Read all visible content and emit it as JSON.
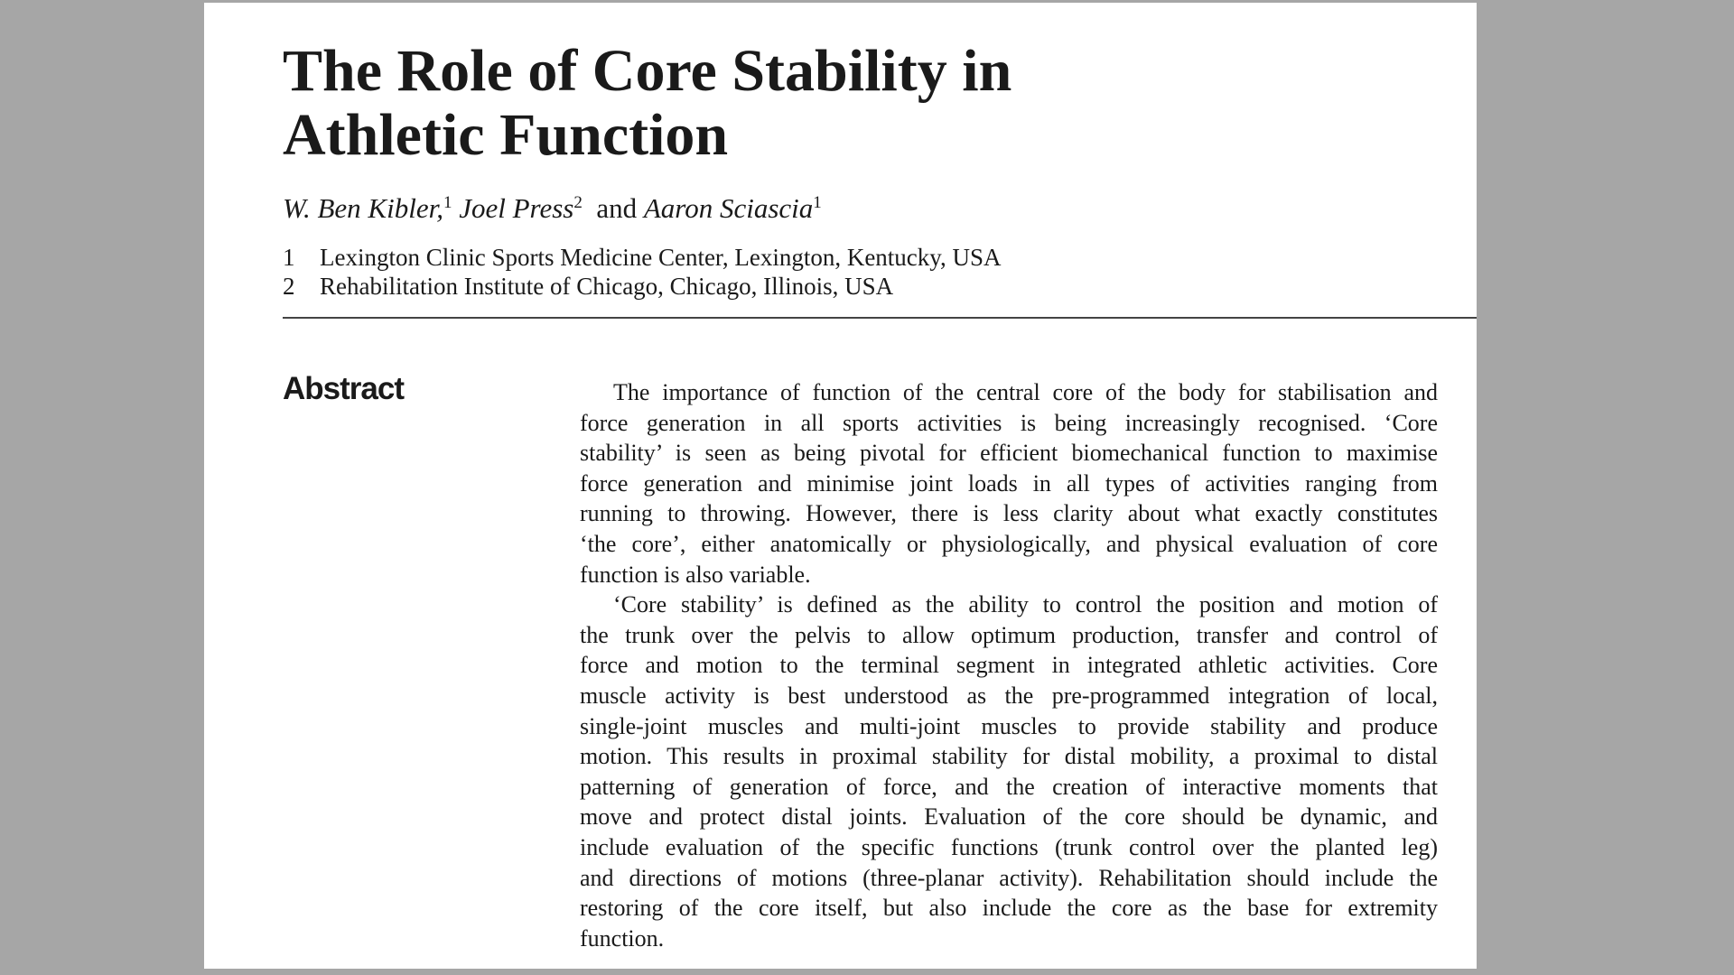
{
  "header": {
    "title_lines": [
      "The Role of Core Stability in",
      "Athletic Function"
    ],
    "authors": [
      {
        "name": "W. Ben Kibler,",
        "sup": "1"
      },
      {
        "name": "Joel Press",
        "sup": "2"
      },
      {
        "name": "Aaron Sciascia",
        "sup": "1"
      }
    ],
    "connector": "and",
    "affiliations": [
      {
        "number": "1",
        "text": "Lexington Clinic Sports Medicine Center, Lexington, Kentucky, USA"
      },
      {
        "number": "2",
        "text": "Rehabilitation Institute of Chicago, Chicago, Illinois, USA"
      }
    ]
  },
  "abstract": {
    "heading": "Abstract",
    "paragraphs": [
      {
        "lines": [
          "The importance of function of the central core of the body for stabilisation and",
          "force generation in all sports activities is being increasingly recognised. ‘Core",
          "stability’ is seen as being pivotal for efficient biomechanical function to maximise",
          "force generation and minimise joint loads in all types of activities ranging from",
          "running to throwing. However, there is less clarity about what exactly constitutes",
          "‘the core’, either anatomically or physiologically, and physical evaluation of core",
          "function is also variable."
        ]
      },
      {
        "lines": [
          "‘Core stability’ is defined as the ability to control the position and motion of",
          "the trunk over the pelvis to allow optimum production, transfer and control of",
          "force and motion to the terminal segment in integrated athletic activities. Core",
          "muscle activity is best understood as the pre-programmed integration of local,",
          "single-joint muscles and multi-joint muscles to provide stability and produce",
          "motion. This results in proximal stability for distal mobility, a proximal to distal",
          "patterning of generation of force, and the creation of interactive moments that",
          "move and protect distal joints. Evaluation of the core should be dynamic, and",
          "include evaluation of the specific functions (trunk control over the planted leg)",
          "and directions of motions (three-planar activity). Rehabilitation should include the",
          "restoring of the core itself, but also include the core as the base for extremity",
          "function."
        ]
      }
    ]
  }
}
